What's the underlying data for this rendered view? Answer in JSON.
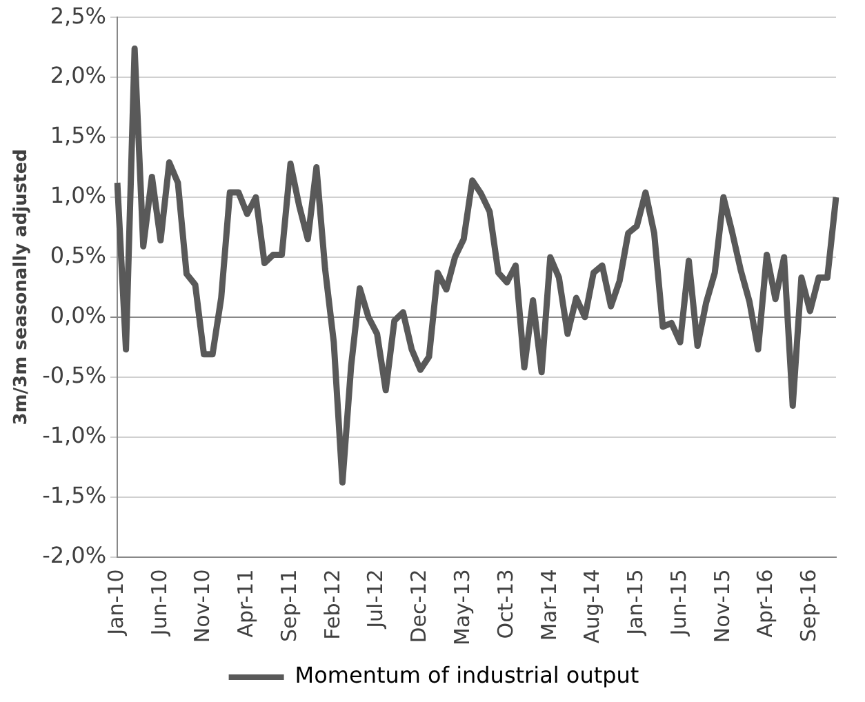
{
  "chart_data": {
    "type": "line",
    "ylabel": "3m/3m seasonally adjusted",
    "categories": [
      "Jan-10",
      null,
      null,
      null,
      null,
      "Jun-10",
      null,
      null,
      null,
      null,
      "Nov-10",
      null,
      null,
      null,
      null,
      "Apr-11",
      null,
      null,
      null,
      null,
      "Sep-11",
      null,
      null,
      null,
      null,
      "Feb-12",
      null,
      null,
      null,
      null,
      "Jul-12",
      null,
      null,
      null,
      null,
      "Dec-12",
      null,
      null,
      null,
      null,
      "May-13",
      null,
      null,
      null,
      null,
      "Oct-13",
      null,
      null,
      null,
      null,
      "Mar-14",
      null,
      null,
      null,
      null,
      "Aug-14",
      null,
      null,
      null,
      null,
      "Jan-15",
      null,
      null,
      null,
      null,
      "Jun-15",
      null,
      null,
      null,
      null,
      "Nov-15",
      null,
      null,
      null,
      null,
      "Apr-16",
      null,
      null,
      null,
      null,
      "Sep-16",
      null,
      null,
      null
    ],
    "series": [
      {
        "name": "Momentum of industrial output",
        "color": "#595959",
        "values": [
          1.12,
          -0.27,
          2.24,
          0.59,
          1.17,
          0.64,
          1.29,
          1.12,
          0.36,
          0.27,
          -0.31,
          -0.31,
          0.16,
          1.04,
          1.04,
          0.86,
          1.0,
          0.45,
          0.52,
          0.52,
          1.28,
          0.93,
          0.65,
          1.25,
          0.4,
          -0.21,
          -1.38,
          -0.41,
          0.24,
          0.0,
          -0.14,
          -0.61,
          -0.03,
          0.04,
          -0.27,
          -0.44,
          -0.33,
          0.37,
          0.23,
          0.5,
          0.65,
          1.14,
          1.03,
          0.88,
          0.37,
          0.29,
          0.43,
          -0.42,
          0.14,
          -0.46,
          0.5,
          0.33,
          -0.14,
          0.16,
          0.0,
          0.37,
          0.43,
          0.09,
          0.3,
          0.7,
          0.76,
          1.04,
          0.7,
          -0.08,
          -0.05,
          -0.21,
          0.47,
          -0.24,
          0.12,
          0.37,
          1.0,
          0.71,
          0.39,
          0.13,
          -0.27,
          0.52,
          0.15,
          0.5,
          -0.74,
          0.33,
          0.05,
          0.33,
          0.33,
          1.0
        ]
      }
    ],
    "ylim": [
      -2.0,
      2.5
    ],
    "yticks": [
      {
        "value": -2.0,
        "label": "-2,0%"
      },
      {
        "value": -1.5,
        "label": "-1,5%"
      },
      {
        "value": -1.0,
        "label": "-1,0%"
      },
      {
        "value": -0.5,
        "label": "-0,5%"
      },
      {
        "value": 0,
        "label": "0,0%"
      },
      {
        "value": 0.5,
        "label": "0,5%"
      },
      {
        "value": 1.0,
        "label": "1,0%"
      },
      {
        "value": 1.5,
        "label": "1,5%"
      },
      {
        "value": 2.0,
        "label": "2,0%"
      },
      {
        "value": 2.5,
        "label": "2,5%"
      }
    ],
    "grid": "y",
    "legend": "bottom",
    "marker": "none",
    "line_style": "solid"
  }
}
